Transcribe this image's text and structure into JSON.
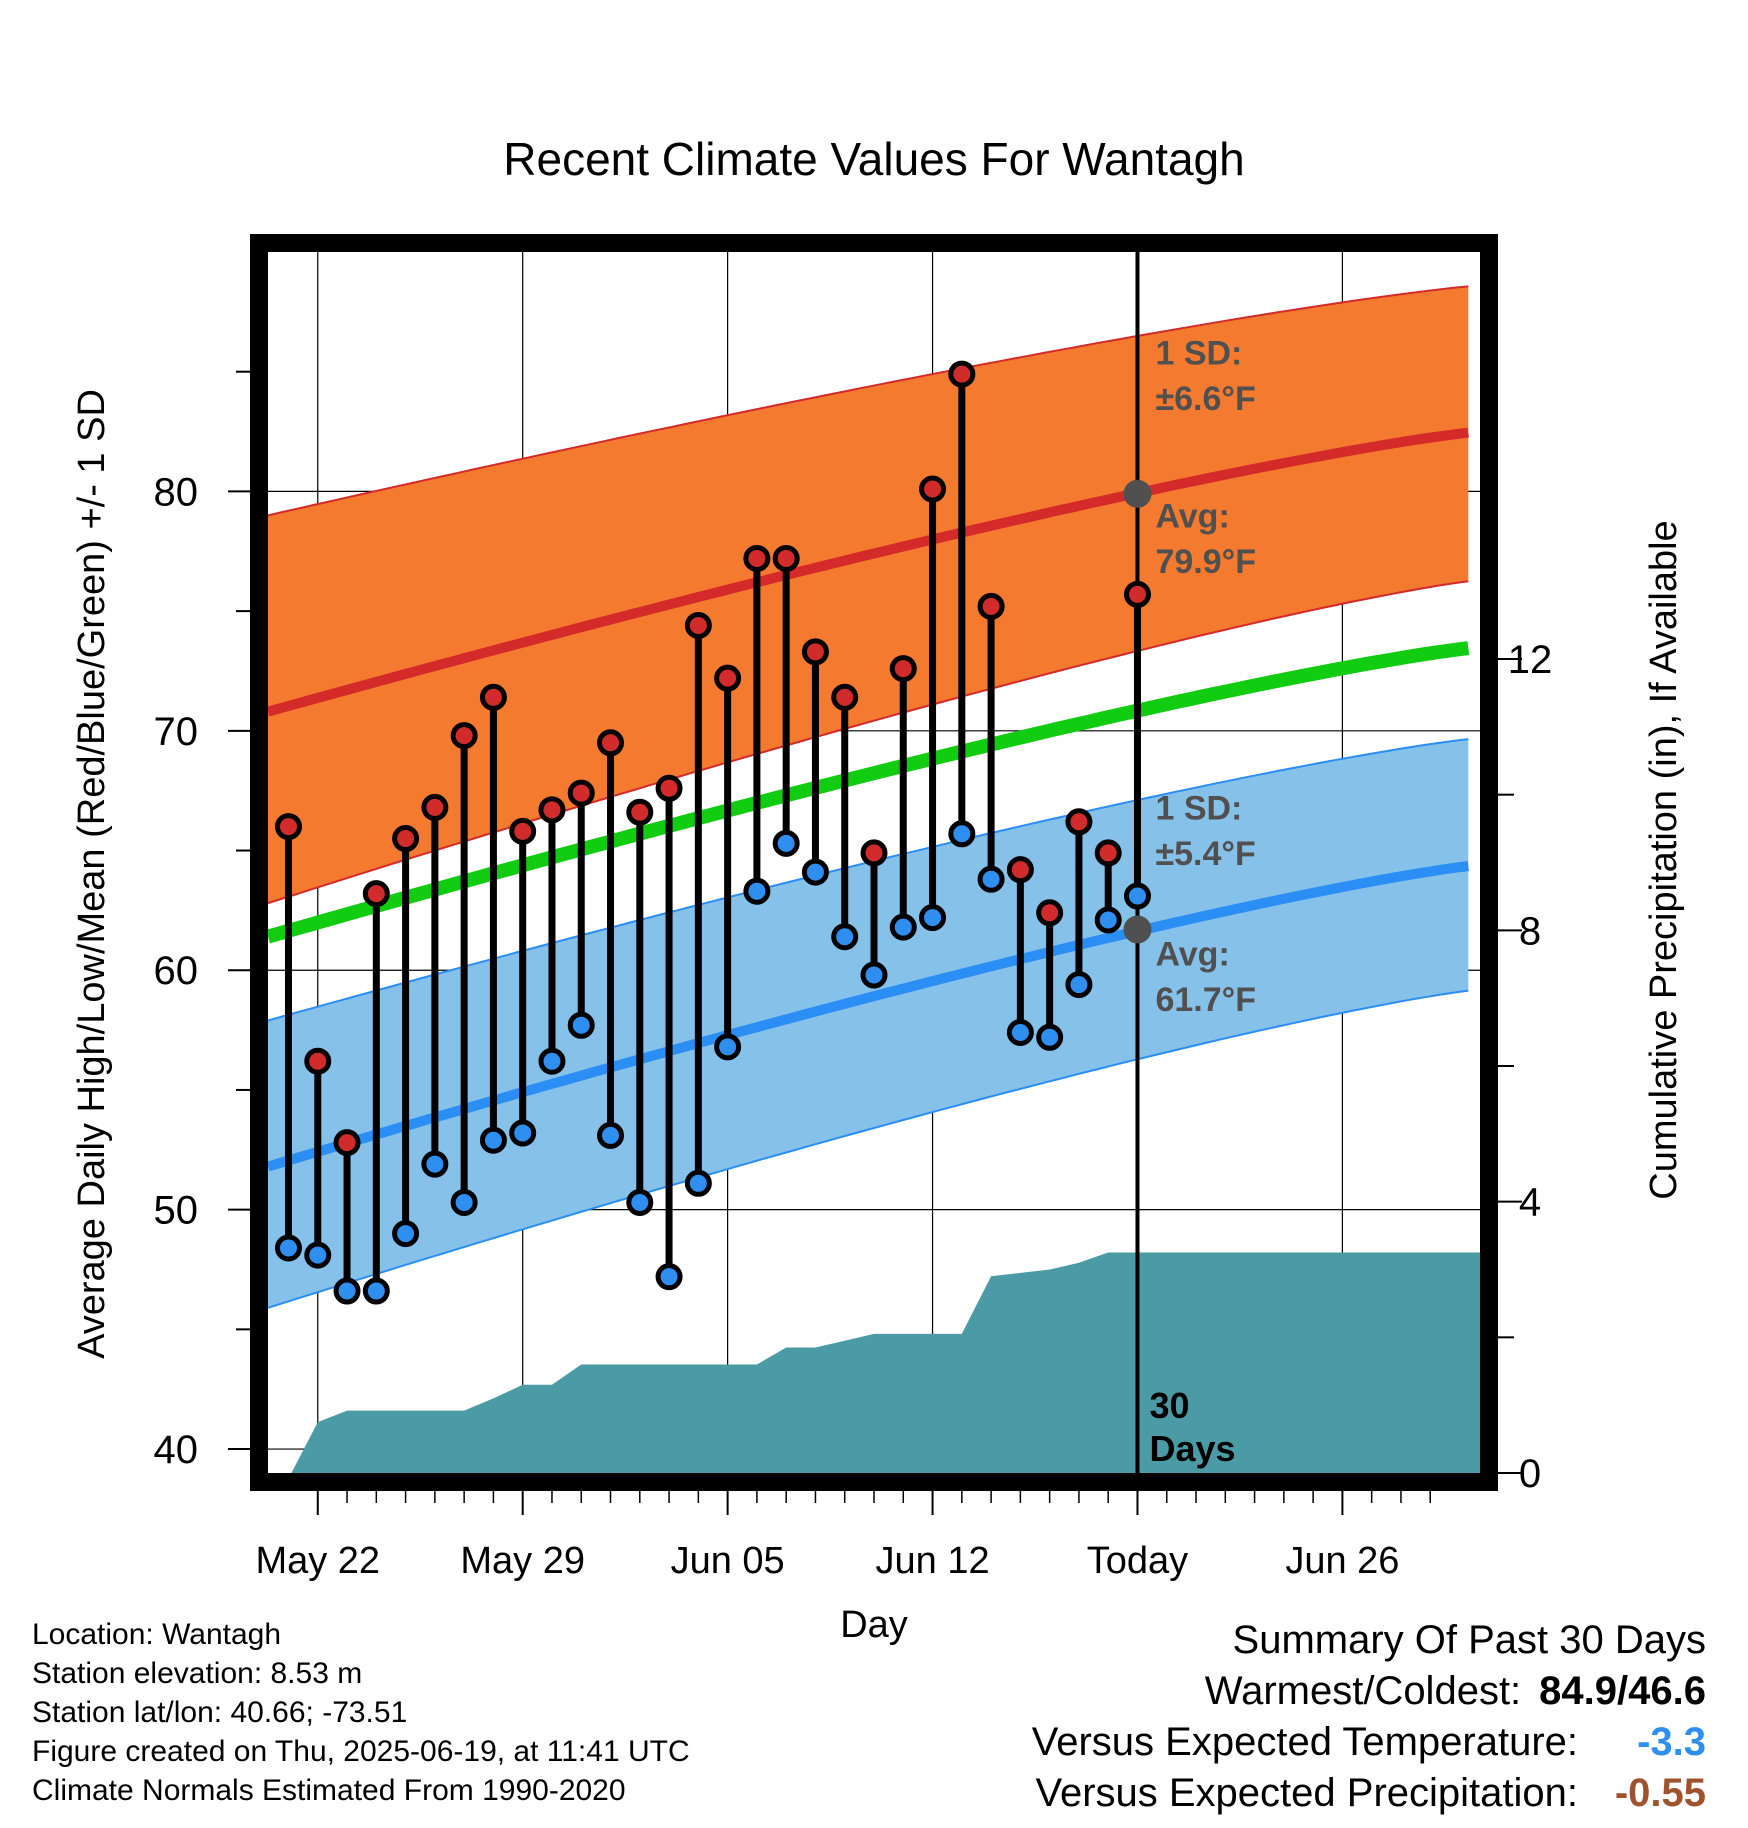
{
  "chart_data": {
    "type": "line",
    "title": "Recent Climate Values For Wantagh",
    "xlabel": "Day",
    "ylabel": "Average Daily High/Low/Mean (Red/Blue/Green) +/- 1 SD",
    "y2label": "Cumulative Precipitation (in), If Available",
    "ylim": [
      39,
      90
    ],
    "y2lim": [
      0,
      18
    ],
    "x_range_days": [
      -29.7,
      11.7
    ],
    "x_tick_labels": [
      {
        "day": -28,
        "label": "May 22"
      },
      {
        "day": -21,
        "label": "May 29"
      },
      {
        "day": -14,
        "label": "Jun 05"
      },
      {
        "day": -7,
        "label": "Jun 12"
      },
      {
        "day": 0,
        "label": "Today"
      },
      {
        "day": 7,
        "label": "Jun 26"
      }
    ],
    "y_ticks": [
      40,
      50,
      60,
      70,
      80
    ],
    "y2_ticks": [
      0,
      4,
      8,
      12
    ],
    "grid": true,
    "today_line_day": 0,
    "daily_high": [
      66.0,
      56.2,
      52.8,
      63.2,
      65.5,
      66.8,
      69.8,
      71.4,
      65.8,
      66.7,
      67.4,
      69.5,
      66.6,
      67.6,
      74.4,
      72.2,
      77.2,
      77.2,
      73.3,
      71.4,
      64.9,
      72.6,
      80.1,
      84.9,
      75.2,
      64.2,
      62.4,
      66.2,
      64.9,
      75.7
    ],
    "daily_low": [
      48.4,
      48.1,
      46.6,
      46.6,
      49.0,
      51.9,
      50.3,
      52.9,
      53.2,
      56.2,
      57.7,
      53.1,
      50.3,
      47.2,
      51.1,
      56.8,
      63.3,
      65.3,
      64.1,
      61.4,
      59.8,
      61.8,
      62.2,
      65.7,
      63.8,
      57.4,
      57.2,
      59.4,
      62.1,
      63.1
    ],
    "series": [
      {
        "name": "Average High",
        "color": "#d42a2a",
        "start": 70.8,
        "end": 82.5
      },
      {
        "name": "Average High +1 SD",
        "color": "#d42a2a",
        "start": 79.0,
        "end": 88.6
      },
      {
        "name": "Average High -1 SD",
        "color": "#d42a2a",
        "start": 62.8,
        "end": 76.3
      },
      {
        "name": "Average Mean",
        "color": "#11cc11",
        "start": 61.4,
        "end": 73.5
      },
      {
        "name": "Average Low",
        "color": "#2a8ef5",
        "start": 51.8,
        "end": 64.4
      },
      {
        "name": "Average Low +1 SD",
        "color": "#2a8ef5",
        "start": 57.9,
        "end": 69.7
      },
      {
        "name": "Average Low -1 SD",
        "color": "#2a8ef5",
        "start": 45.9,
        "end": 59.2
      }
    ],
    "precipitation_cumulative": [
      [
        -29.7,
        0
      ],
      [
        -28.9,
        0
      ],
      [
        -28,
        0.75
      ],
      [
        -27,
        0.92
      ],
      [
        -26,
        0.92
      ],
      [
        -25,
        0.92
      ],
      [
        -24,
        0.92
      ],
      [
        -23,
        0.92
      ],
      [
        -22,
        1.1
      ],
      [
        -21,
        1.3
      ],
      [
        -20,
        1.3
      ],
      [
        -19,
        1.6
      ],
      [
        -18,
        1.6
      ],
      [
        -17,
        1.6
      ],
      [
        -16,
        1.6
      ],
      [
        -15,
        1.6
      ],
      [
        -14,
        1.6
      ],
      [
        -13,
        1.6
      ],
      [
        -12,
        1.85
      ],
      [
        -11,
        1.85
      ],
      [
        -10,
        1.95
      ],
      [
        -9,
        2.05
      ],
      [
        -8,
        2.05
      ],
      [
        -7,
        2.05
      ],
      [
        -6,
        2.05
      ],
      [
        -5,
        2.9
      ],
      [
        -4,
        2.95
      ],
      [
        -3,
        3.0
      ],
      [
        -2,
        3.1
      ],
      [
        -1,
        3.25
      ],
      [
        0,
        3.25
      ],
      [
        11.7,
        3.25
      ]
    ],
    "annotations": {
      "high_sd": "1 SD:",
      "high_sd_val": "±6.6°F",
      "high_avg": "Avg:",
      "high_avg_val": "79.9°F",
      "low_sd": "1 SD:",
      "low_sd_val": "±5.4°F",
      "low_avg": "Avg:",
      "low_avg_val": "61.7°F",
      "days_num": "30",
      "days_word": "Days",
      "high_avg_today": 79.9,
      "low_avg_today": 61.7
    },
    "colors": {
      "high_band": "#f47a2f",
      "low_band": "#86c1e9",
      "high_marker": "#d22b2b",
      "low_marker": "#2f8ff0",
      "precip": "#4a9ba6",
      "annotation_text": "#505050"
    }
  },
  "station": {
    "location": "Location: Wantagh",
    "elevation": "Station elevation: 8.53 m",
    "latlon": "Station lat/lon: 40.66; -73.51",
    "created": "Figure created on Thu, 2025-06-19, at 11:41 UTC",
    "normals": "Climate Normals Estimated From 1990-2020"
  },
  "summary": {
    "title": "Summary Of Past 30 Days",
    "warmest_coldest_label": "Warmest/Coldest:",
    "warmest_coldest_value": "84.9/46.6",
    "temp_label": "Versus Expected Temperature:",
    "temp_value": "-3.3",
    "temp_color": "#2f8ff0",
    "precip_label": "Versus Expected Precipitation:",
    "precip_value": "-0.55",
    "precip_color": "#a0522d"
  }
}
